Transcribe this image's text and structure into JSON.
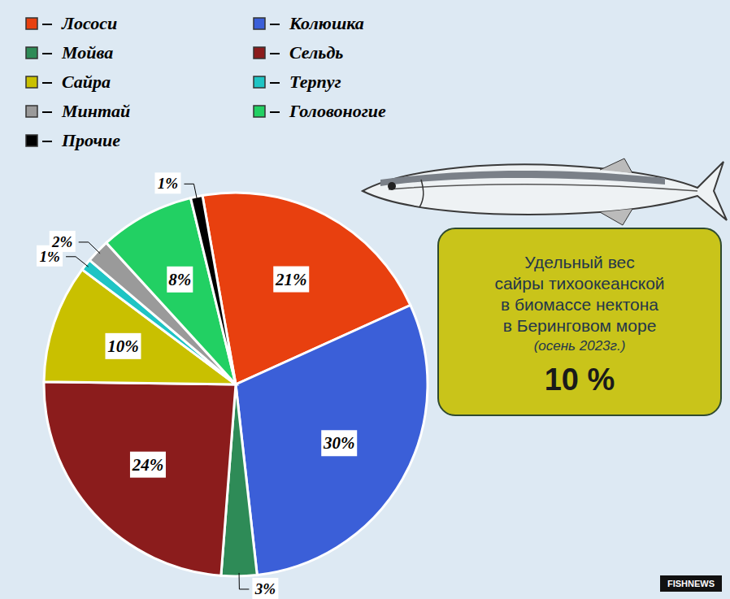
{
  "chart_data": {
    "type": "pie",
    "categories": [
      "Лососи",
      "Колюшка",
      "Мойва",
      "Сельдь",
      "Сайра",
      "Терпуг",
      "Минтай",
      "Головоногие",
      "Прочие"
    ],
    "values": [
      21,
      30,
      3,
      24,
      10,
      1,
      2,
      8,
      1
    ],
    "value_labels": [
      "21%",
      "30%",
      "3%",
      "24%",
      "10%",
      "1%",
      "2%",
      "8%",
      "1%"
    ],
    "colors": [
      "#e8400f",
      "#3b5fd8",
      "#2e8b57",
      "#8b1c1c",
      "#c9c000",
      "#1fc4c4",
      "#9a9a9a",
      "#22d063",
      "#000000"
    ],
    "data_labels": true,
    "legend": "upper left",
    "annotation": {
      "lines": [
        "Удельный вес",
        "сайры тихоокеанской",
        "в биомассе нектона",
        "в Беринговом море"
      ],
      "note": "(осень 2023г.)",
      "value": 10,
      "value_label": "10 %"
    },
    "source": "FISHNEWS"
  }
}
